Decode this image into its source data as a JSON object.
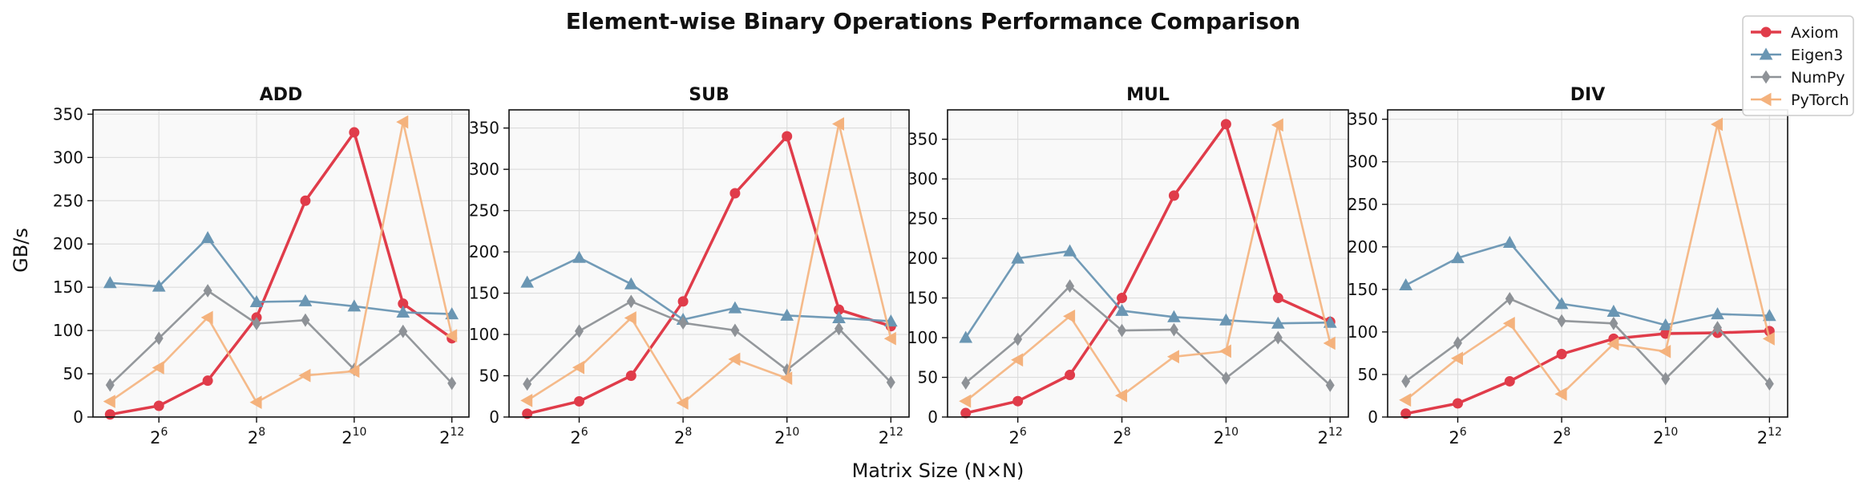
{
  "figure": {
    "title": "Element-wise Binary Operations Performance Comparison",
    "shared_xlabel": "Matrix Size (N×N)",
    "shared_ylabel": "GB/s"
  },
  "legend": {
    "placement": "top-right",
    "entries": [
      {
        "name": "Axiom",
        "color": "#e03c4a",
        "marker": "circle"
      },
      {
        "name": "Eigen3",
        "color": "#6a96b3",
        "marker": "triangle-up"
      },
      {
        "name": "NumPy",
        "color": "#8e9297",
        "marker": "diamond"
      },
      {
        "name": "PyTorch",
        "color": "#f4b27d",
        "marker": "triangle-left"
      }
    ]
  },
  "chart_data": [
    {
      "type": "line",
      "title": "ADD",
      "xscale": "log2",
      "x": [
        32,
        64,
        128,
        256,
        512,
        1024,
        2048,
        4096
      ],
      "xticks": [
        {
          "base": "2",
          "exp": "6"
        },
        {
          "base": "2",
          "exp": "8"
        },
        {
          "base": "2",
          "exp": "10"
        },
        {
          "base": "2",
          "exp": "12"
        }
      ],
      "ylim": [
        0,
        355
      ],
      "yticks": [
        0,
        50,
        100,
        150,
        200,
        250,
        300,
        350
      ],
      "grid": true,
      "series": [
        {
          "name": "Axiom",
          "values": [
            3,
            13,
            42,
            115,
            250,
            329,
            131,
            91
          ]
        },
        {
          "name": "Eigen3",
          "values": [
            155,
            151,
            207,
            133,
            134,
            128,
            121,
            119
          ]
        },
        {
          "name": "NumPy",
          "values": [
            37,
            91,
            146,
            108,
            112,
            55,
            99,
            39
          ]
        },
        {
          "name": "PyTorch",
          "values": [
            18,
            57,
            115,
            17,
            48,
            53,
            341,
            94
          ]
        }
      ]
    },
    {
      "type": "line",
      "title": "SUB",
      "xscale": "log2",
      "x": [
        32,
        64,
        128,
        256,
        512,
        1024,
        2048,
        4096
      ],
      "xticks": [
        {
          "base": "2",
          "exp": "6"
        },
        {
          "base": "2",
          "exp": "8"
        },
        {
          "base": "2",
          "exp": "10"
        },
        {
          "base": "2",
          "exp": "12"
        }
      ],
      "ylim": [
        0,
        372
      ],
      "yticks": [
        0,
        50,
        100,
        150,
        200,
        250,
        300,
        350
      ],
      "grid": true,
      "series": [
        {
          "name": "Axiom",
          "values": [
            4,
            19,
            50,
            140,
            271,
            340,
            130,
            110
          ]
        },
        {
          "name": "Eigen3",
          "values": [
            163,
            193,
            161,
            118,
            132,
            123,
            120,
            116
          ]
        },
        {
          "name": "NumPy",
          "values": [
            40,
            104,
            140,
            114,
            105,
            57,
            107,
            42
          ]
        },
        {
          "name": "PyTorch",
          "values": [
            20,
            60,
            120,
            17,
            70,
            47,
            355,
            95
          ]
        }
      ]
    },
    {
      "type": "line",
      "title": "MUL",
      "xscale": "log2",
      "x": [
        32,
        64,
        128,
        256,
        512,
        1024,
        2048,
        4096
      ],
      "xticks": [
        {
          "base": "2",
          "exp": "6"
        },
        {
          "base": "2",
          "exp": "8"
        },
        {
          "base": "2",
          "exp": "10"
        },
        {
          "base": "2",
          "exp": "12"
        }
      ],
      "ylim": [
        0,
        387
      ],
      "yticks": [
        0,
        50,
        100,
        150,
        200,
        250,
        300,
        350
      ],
      "grid": true,
      "series": [
        {
          "name": "Axiom",
          "values": [
            5,
            20,
            53,
            150,
            279,
            369,
            150,
            120
          ]
        },
        {
          "name": "Eigen3",
          "values": [
            100,
            200,
            209,
            134,
            126,
            122,
            118,
            119
          ]
        },
        {
          "name": "NumPy",
          "values": [
            43,
            98,
            165,
            109,
            110,
            49,
            100,
            40
          ]
        },
        {
          "name": "PyTorch",
          "values": [
            20,
            72,
            127,
            27,
            76,
            83,
            368,
            93
          ]
        }
      ]
    },
    {
      "type": "line",
      "title": "DIV",
      "xscale": "log2",
      "x": [
        32,
        64,
        128,
        256,
        512,
        1024,
        2048,
        4096
      ],
      "xticks": [
        {
          "base": "2",
          "exp": "6"
        },
        {
          "base": "2",
          "exp": "8"
        },
        {
          "base": "2",
          "exp": "10"
        },
        {
          "base": "2",
          "exp": "12"
        }
      ],
      "ylim": [
        0,
        361
      ],
      "yticks": [
        0,
        50,
        100,
        150,
        200,
        250,
        300,
        350
      ],
      "grid": true,
      "series": [
        {
          "name": "Axiom",
          "values": [
            4,
            16,
            42,
            74,
            92,
            98,
            99,
            101
          ]
        },
        {
          "name": "Eigen3",
          "values": [
            155,
            187,
            205,
            133,
            124,
            108,
            121,
            119
          ]
        },
        {
          "name": "NumPy",
          "values": [
            42,
            87,
            139,
            113,
            110,
            45,
            105,
            39
          ]
        },
        {
          "name": "PyTorch",
          "values": [
            20,
            69,
            110,
            27,
            86,
            77,
            344,
            92
          ]
        }
      ]
    }
  ]
}
